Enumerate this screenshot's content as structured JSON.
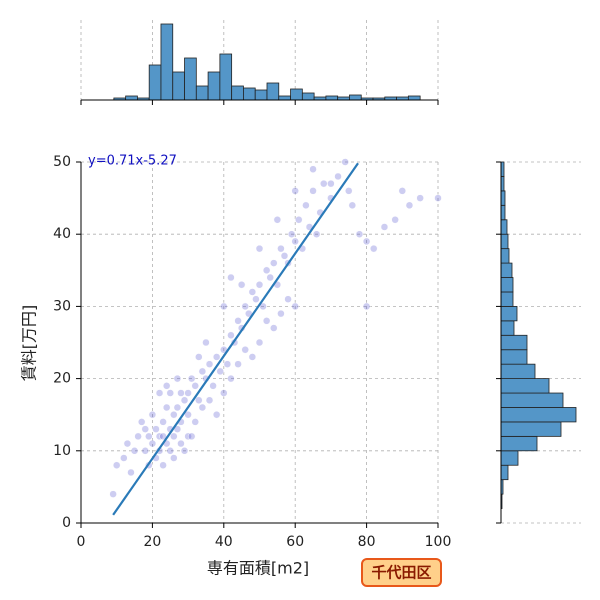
{
  "chart_data": {
    "type": "scatter",
    "xlabel": "専有面積[m2]",
    "ylabel": "賃料[万円]",
    "badge": "千代田区",
    "annotation": "y=0.71x-5.27",
    "xlim": [
      0,
      100
    ],
    "ylim": [
      0,
      50
    ],
    "xticks": [
      0,
      20,
      40,
      60,
      80,
      100
    ],
    "yticks": [
      0,
      10,
      20,
      30,
      40,
      50
    ],
    "grid": true,
    "fit": {
      "slope": 0.71,
      "intercept": -5.27,
      "x": [
        9,
        77.6
      ],
      "color": "#2a7ab8"
    },
    "series": [
      {
        "color": "#5a5ad0",
        "x": [
          22,
          23,
          24,
          25,
          26,
          27,
          28,
          29,
          30,
          24,
          22,
          21,
          20,
          19,
          18,
          23,
          25,
          26,
          27,
          28,
          30,
          31,
          32,
          33,
          34,
          35,
          36,
          37,
          38,
          39,
          40,
          41,
          42,
          43,
          44,
          45,
          46,
          47,
          48,
          49,
          50,
          51,
          52,
          53,
          54,
          55,
          56,
          57,
          58,
          59,
          60,
          61,
          62,
          63,
          64,
          65,
          66,
          67,
          68,
          70,
          72,
          74,
          75,
          78,
          80,
          82,
          85,
          88,
          90,
          92,
          95,
          100,
          10,
          12,
          14,
          15,
          16,
          17,
          13,
          9,
          20,
          22,
          24,
          26,
          28,
          30,
          32,
          34,
          36,
          38,
          40,
          42,
          44,
          46,
          48,
          50,
          52,
          54,
          56,
          58,
          60,
          45,
          50,
          55,
          60,
          65,
          70,
          80,
          76,
          40,
          42,
          35,
          33,
          31,
          29,
          27,
          25,
          23,
          21,
          19,
          18
        ],
        "values": [
          12,
          14,
          11,
          13,
          15,
          16,
          14,
          17,
          18,
          16,
          10,
          9,
          11,
          8,
          10,
          12,
          10,
          12,
          13,
          18,
          15,
          20,
          19,
          17,
          21,
          20,
          22,
          19,
          23,
          21,
          24,
          22,
          26,
          25,
          28,
          27,
          30,
          29,
          32,
          31,
          33,
          30,
          35,
          34,
          36,
          33,
          38,
          37,
          36,
          40,
          39,
          42,
          38,
          44,
          41,
          46,
          40,
          43,
          47,
          45,
          48,
          50,
          46,
          40,
          39,
          38,
          41,
          42,
          46,
          44,
          45,
          45,
          8,
          9,
          7,
          10,
          12,
          14,
          11,
          4,
          15,
          18,
          19,
          9,
          11,
          12,
          14,
          16,
          17,
          15,
          18,
          20,
          22,
          24,
          23,
          25,
          28,
          27,
          29,
          31,
          30,
          33,
          38,
          42,
          46,
          49,
          47,
          30,
          44,
          30,
          34,
          25,
          23,
          12,
          10,
          20,
          18,
          8,
          13,
          12,
          13
        ]
      }
    ],
    "top_hist": {
      "color": "#5496c8",
      "bins": [
        9.2,
        12.5,
        15.8,
        19.1,
        22.4,
        25.7,
        29.0,
        32.3,
        35.6,
        38.9,
        42.2,
        45.5,
        48.8,
        52.1,
        55.4,
        58.7,
        62.0,
        65.3,
        68.6,
        71.9,
        75.2,
        78.5,
        81.8,
        85.1,
        88.4,
        91.7,
        95.0
      ],
      "counts": [
        2,
        4,
        2,
        35,
        76,
        28,
        42,
        14,
        28,
        46,
        14,
        12,
        10,
        17,
        4,
        11,
        7,
        3,
        4,
        3,
        5,
        2,
        2,
        3,
        3,
        4
      ],
      "ylim": [
        0,
        80
      ]
    },
    "right_hist": {
      "color": "#5496c8",
      "bins": [
        0,
        2,
        4,
        6,
        8,
        10,
        12,
        14,
        16,
        18,
        20,
        22,
        24,
        26,
        28,
        30,
        32,
        34,
        36,
        38,
        40,
        42,
        44,
        46,
        48,
        50
      ],
      "counts": [
        0,
        1,
        2,
        7,
        17,
        36,
        60,
        75,
        62,
        48,
        34,
        26,
        26,
        13,
        16,
        12,
        12,
        11,
        8,
        7,
        6,
        4,
        4,
        3,
        3
      ],
      "xlim": [
        0,
        80
      ]
    }
  }
}
